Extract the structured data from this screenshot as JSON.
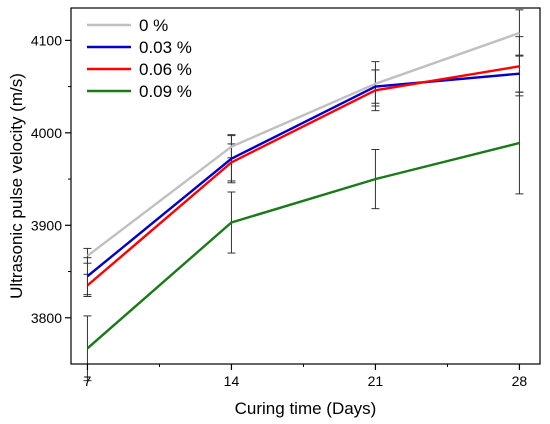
{
  "chart_data": {
    "type": "line",
    "title": "",
    "xlabel": "Curing time (Days)",
    "ylabel": "Ultrasonic pulse velocity (m/s)",
    "x": [
      7,
      14,
      21,
      28
    ],
    "xlim": [
      6.2,
      29
    ],
    "ylim": [
      3750,
      4135
    ],
    "xticks": [
      7,
      14,
      21,
      28
    ],
    "yticks": [
      3800,
      3900,
      4000,
      4100
    ],
    "grid": false,
    "legend_position": "top-left",
    "series": [
      {
        "name": "0 %",
        "color": "#c0c0c0",
        "values": [
          3867,
          3985,
          4053,
          4108
        ],
        "error": [
          8,
          12,
          24,
          25
        ]
      },
      {
        "name": "0.03 %",
        "color": "#0000cc",
        "values": [
          3845,
          3972,
          4050,
          4064
        ],
        "error": [
          20,
          26,
          18,
          20
        ]
      },
      {
        "name": "0.06 %",
        "color": "#ff0000",
        "values": [
          3835,
          3968,
          4046,
          4072
        ],
        "error": [
          12,
          20,
          22,
          32
        ]
      },
      {
        "name": "0.09 %",
        "color": "#1a7a1a",
        "values": [
          3767,
          3903,
          3950,
          3989
        ],
        "error": [
          35,
          33,
          32,
          55
        ]
      }
    ]
  }
}
